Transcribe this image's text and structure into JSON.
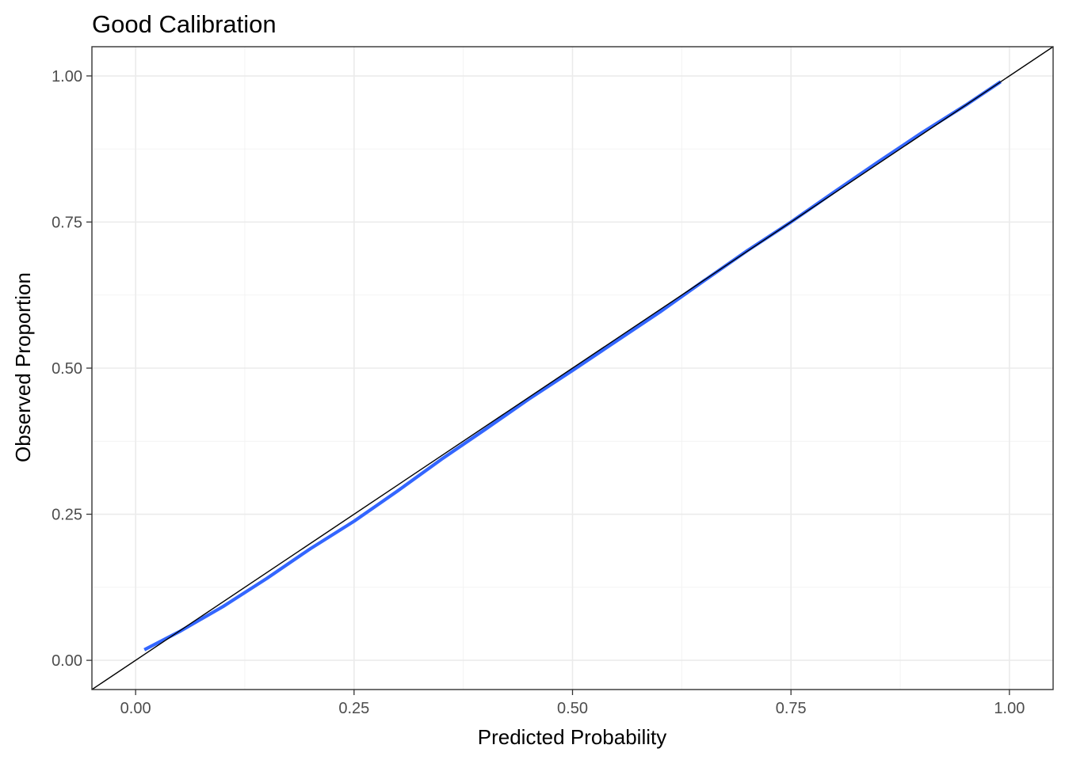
{
  "chart_data": {
    "type": "line",
    "title": "Good Calibration",
    "xlabel": "Predicted Probability",
    "ylabel": "Observed Proportion",
    "xlim": [
      -0.05,
      1.05
    ],
    "ylim": [
      -0.05,
      1.05
    ],
    "x_ticks": [
      0,
      0.25,
      0.5,
      0.75,
      1
    ],
    "x_tick_labels": [
      "0.00",
      "0.25",
      "0.50",
      "0.75",
      "1.00"
    ],
    "y_ticks": [
      0,
      0.25,
      0.5,
      0.75,
      1
    ],
    "y_tick_labels": [
      "0.00",
      "0.25",
      "0.50",
      "0.75",
      "1.00"
    ],
    "grid": true,
    "reference_line": {
      "color": "#000000",
      "points": [
        [
          -0.05,
          -0.05
        ],
        [
          1.05,
          1.05
        ]
      ]
    },
    "series": [
      {
        "color": "#3366ff",
        "x": [
          0.01,
          0.05,
          0.1,
          0.15,
          0.2,
          0.25,
          0.3,
          0.35,
          0.4,
          0.45,
          0.5,
          0.55,
          0.6,
          0.65,
          0.7,
          0.75,
          0.8,
          0.85,
          0.9,
          0.95,
          0.99
        ],
        "y": [
          0.018,
          0.049,
          0.092,
          0.14,
          0.191,
          0.238,
          0.29,
          0.344,
          0.395,
          0.447,
          0.496,
          0.546,
          0.596,
          0.649,
          0.701,
          0.75,
          0.802,
          0.853,
          0.903,
          0.95,
          0.99
        ]
      }
    ]
  }
}
